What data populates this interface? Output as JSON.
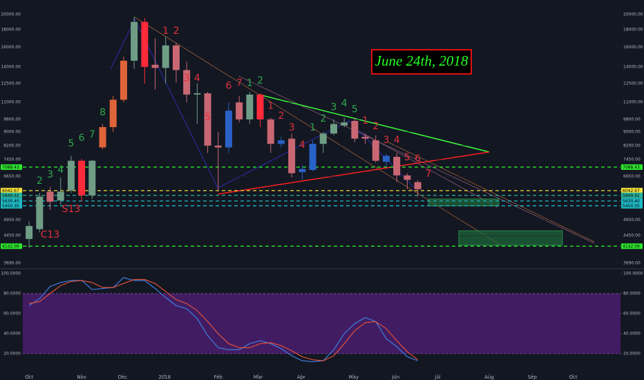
{
  "chart_data": {
    "type": "candlestick",
    "log": true,
    "xlim": [
      -0.6,
      56.3
    ],
    "xticks": [
      {
        "value": 0,
        "label": "Oct"
      },
      {
        "value": 5.0,
        "label": "Nov"
      },
      {
        "value": 8.9,
        "label": "Dec"
      },
      {
        "value": 12.9,
        "label": "2018"
      },
      {
        "value": 18.0,
        "label": "Feb"
      },
      {
        "value": 21.8,
        "label": "Mar"
      },
      {
        "value": 25.9,
        "label": "Apr"
      },
      {
        "value": 30.9,
        "label": "May"
      },
      {
        "value": 34.9,
        "label": "Jun"
      },
      {
        "value": 38.9,
        "label": "Jul"
      },
      {
        "value": 43.8,
        "label": "Aug"
      },
      {
        "value": 47.9,
        "label": "Sep"
      },
      {
        "value": 51.8,
        "label": "Oct"
      }
    ],
    "ylim": [
      3570,
      22050
    ],
    "yticks": [
      {
        "value": 20000,
        "label": "20000.00"
      },
      {
        "value": 18000,
        "label": "18000.00"
      },
      {
        "value": 16000,
        "label": "16000.00"
      },
      {
        "value": 14000,
        "label": "14000.00"
      },
      {
        "value": 12500,
        "label": "12500.00"
      },
      {
        "value": 11000,
        "label": "11000.00"
      },
      {
        "value": 9800,
        "label": "9800.00"
      },
      {
        "value": 9000,
        "label": "9000.00"
      },
      {
        "value": 8200,
        "label": "8200.00"
      },
      {
        "value": 7450,
        "label": "7450.00"
      },
      {
        "value": 6650,
        "label": "6650.00"
      },
      {
        "value": 4950,
        "label": "4950.00"
      },
      {
        "value": 4450,
        "label": "4450.00"
      },
      {
        "value": 3690,
        "label": "3690.00"
      }
    ],
    "candles": {
      "open": [
        4350,
        4650,
        6000,
        5650,
        6050,
        7400,
        5850,
        8100,
        9300,
        11200,
        14600,
        19000,
        14200,
        13900,
        16200,
        13700,
        11600,
        11700,
        8200,
        8100,
        11000,
        9800,
        11600,
        9800,
        8300,
        8600,
        6850,
        6950,
        8300,
        8900,
        9400,
        9700,
        8700,
        8500,
        7350,
        7600,
        6700,
        6400
      ],
      "high": [
        4900,
        5950,
        6200,
        6600,
        7650,
        7500,
        7450,
        9500,
        11500,
        15000,
        19700,
        19500,
        17000,
        17200,
        16500,
        14500,
        12500,
        11800,
        9000,
        11000,
        11500,
        11800,
        11700,
        9900,
        8700,
        8900,
        7200,
        8500,
        9000,
        9800,
        9900,
        9900,
        8900,
        8800,
        7750,
        7800,
        6800,
        6500
      ],
      "low": [
        4100,
        4550,
        5300,
        5500,
        5950,
        5600,
        5700,
        8000,
        9000,
        11000,
        13800,
        12500,
        12000,
        12500,
        12600,
        11000,
        9500,
        7800,
        6000,
        7800,
        9600,
        9500,
        9300,
        7800,
        8100,
        6600,
        6500,
        6900,
        7800,
        8800,
        9300,
        8400,
        8300,
        7300,
        7100,
        6400,
        6100,
        5800
      ],
      "close": [
        4750,
        5800,
        5600,
        6000,
        7400,
        5850,
        7400,
        9300,
        11200,
        14600,
        19000,
        14000,
        13900,
        16200,
        13700,
        11600,
        11700,
        8200,
        8100,
        10400,
        9800,
        11600,
        9800,
        8300,
        8500,
        6800,
        7000,
        8300,
        8900,
        9500,
        9600,
        8600,
        8600,
        7400,
        7650,
        6700,
        6500,
        6100
      ],
      "colors": [
        "#6f9d86",
        "#6f9d86",
        "#c96873",
        "#6f9d86",
        "#6f9d86",
        "#ff2a3a",
        "#6f9d86",
        "#e0643a",
        "#e0643a",
        "#e0643a",
        "#6f9d86",
        "#ff2a3a",
        "#c96873",
        "#6f9d86",
        "#c96873",
        "#c96873",
        "#6f9d86",
        "#c96873",
        "#c96873",
        "#2962c6",
        "#c96873",
        "#6f9d86",
        "#ff2a3a",
        "#c96873",
        "#2962c6",
        "#c96873",
        "#2962c6",
        "#2962c6",
        "#6f9d86",
        "#6f9d86",
        "#6f9d86",
        "#c96873",
        "#c96873",
        "#c96873",
        "#2962c6",
        "#c96873",
        "#c96873",
        "#c96873"
      ]
    },
    "levels": [
      {
        "value": 7088.43,
        "label": "7088.43",
        "color": "#2ee82e"
      },
      {
        "value": 6042.67,
        "label": "6042.67",
        "color": "#f5e13a"
      },
      {
        "value": 5849.92,
        "label": "5849.92",
        "color": "#2ab5a0"
      },
      {
        "value": 5630.4,
        "label": "5630.40",
        "color": "#1fb8c4"
      },
      {
        "value": 5450.35,
        "label": "5450.35",
        "color": "#1fb8c4"
      },
      {
        "value": 4142.09,
        "label": "4142.09",
        "color": "#2ee82e"
      }
    ],
    "annotations": [
      {
        "text": "2",
        "x": 1,
        "y": 6450,
        "color": "#2ea84a"
      },
      {
        "text": "3",
        "x": 2,
        "y": 6730,
        "color": "#2ea84a"
      },
      {
        "text": "4",
        "x": 3,
        "y": 6950,
        "color": "#2ea84a"
      },
      {
        "text": "5",
        "x": 4,
        "y": 8300,
        "color": "#2ea84a"
      },
      {
        "text": "6",
        "x": 5,
        "y": 8620,
        "color": "#2ea84a"
      },
      {
        "text": "7",
        "x": 6,
        "y": 8830,
        "color": "#2ea84a"
      },
      {
        "text": "8",
        "x": 7,
        "y": 10250,
        "color": "#2ea84a"
      },
      {
        "text": "1",
        "x": 13,
        "y": 17850,
        "color": "#e0323a"
      },
      {
        "text": "2",
        "x": 14,
        "y": 17850,
        "color": "#e0323a"
      },
      {
        "text": "3",
        "x": 15,
        "y": 12960,
        "color": "#e0323a"
      },
      {
        "text": "4",
        "x": 16,
        "y": 12960,
        "color": "#e0323a"
      },
      {
        "text": "5",
        "x": 17,
        "y": 9920,
        "color": "#e0323a"
      },
      {
        "text": "6",
        "x": 19,
        "y": 12300,
        "color": "#e0323a"
      },
      {
        "text": "7",
        "x": 20,
        "y": 12540,
        "color": "#e0323a"
      },
      {
        "text": "1",
        "x": 21,
        "y": 12540,
        "color": "#2ea84a"
      },
      {
        "text": "2",
        "x": 22,
        "y": 12720,
        "color": "#2ea84a"
      },
      {
        "text": "1",
        "x": 23,
        "y": 10740,
        "color": "#e0323a"
      },
      {
        "text": "2",
        "x": 24,
        "y": 10020,
        "color": "#e0323a"
      },
      {
        "text": "3",
        "x": 25,
        "y": 9250,
        "color": "#e0323a"
      },
      {
        "text": "4",
        "x": 26,
        "y": 8230,
        "color": "#e0323a"
      },
      {
        "text": "1",
        "x": 27,
        "y": 9250,
        "color": "#2ea84a"
      },
      {
        "text": "2",
        "x": 28,
        "y": 9830,
        "color": "#2ea84a"
      },
      {
        "text": "3",
        "x": 29,
        "y": 10640,
        "color": "#2ea84a"
      },
      {
        "text": "4",
        "x": 30,
        "y": 10900,
        "color": "#2ea84a"
      },
      {
        "text": "5",
        "x": 31,
        "y": 10490,
        "color": "#2ea84a"
      },
      {
        "text": "1",
        "x": 32,
        "y": 9700,
        "color": "#e0323a"
      },
      {
        "text": "2",
        "x": 33,
        "y": 9340,
        "color": "#e0323a"
      },
      {
        "text": "3",
        "x": 34,
        "y": 8500,
        "color": "#e0323a"
      },
      {
        "text": "4",
        "x": 35,
        "y": 8500,
        "color": "#e0323a"
      },
      {
        "text": "5",
        "x": 36,
        "y": 7570,
        "color": "#e0323a"
      },
      {
        "text": "6",
        "x": 37,
        "y": 7500,
        "color": "#e0323a"
      },
      {
        "text": "7",
        "x": 38,
        "y": 6760,
        "color": "#e0323a"
      },
      {
        "text": "S13",
        "x": 4,
        "y": 5320,
        "color": "#e0323a"
      },
      {
        "text": "C13",
        "x": 2,
        "y": 4470,
        "color": "#e0323a"
      }
    ],
    "note": "June 24th, 2018",
    "stochastic": {
      "type": "line",
      "ylim": [
        0,
        104
      ],
      "yticks": [
        {
          "value": 100,
          "label": "100.0000"
        },
        {
          "value": 80,
          "label": "80.0000"
        },
        {
          "value": 60,
          "label": "60.0000"
        },
        {
          "value": 40,
          "label": "40.0000"
        },
        {
          "value": 20,
          "label": "20.0000"
        }
      ],
      "band": [
        20,
        80
      ],
      "series": [
        {
          "color": "#3d7fe0",
          "values": [
            68,
            75,
            87,
            91,
            93,
            93,
            84,
            85,
            86,
            96,
            93,
            93,
            85,
            76,
            68,
            65,
            55,
            38,
            26,
            24,
            24,
            30,
            33,
            30,
            25,
            18,
            13,
            12,
            13,
            24,
            40,
            50,
            56,
            52,
            35,
            27,
            17,
            13
          ]
        },
        {
          "color": "#e0503a",
          "values": [
            70,
            72,
            80,
            88,
            92,
            93,
            91,
            86,
            86,
            90,
            94,
            94,
            90,
            82,
            74,
            70,
            63,
            52,
            40,
            30,
            26,
            26,
            30,
            31,
            28,
            23,
            17,
            14,
            13,
            18,
            30,
            43,
            51,
            52,
            45,
            33,
            22,
            14
          ]
        }
      ]
    }
  }
}
